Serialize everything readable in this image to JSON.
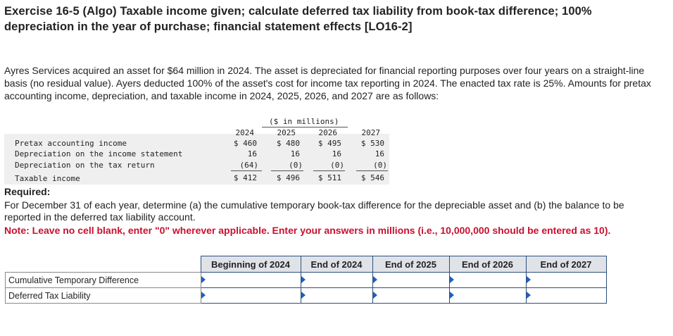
{
  "title": "Exercise 16-5 (Algo) Taxable income given; calculate deferred tax liability from book-tax difference; 100% depreciation in the year of purchase; financial statement effects [LO16-2]",
  "intro": "Ayres Services acquired an asset for $64 million in 2024. The asset is depreciated for financial reporting purposes over four years on a straight-line basis (no residual value). Ayers deducted 100% of the asset's cost for income tax reporting in 2024. The enacted tax rate is 25%. Amounts for pretax accounting income, depreciation, and taxable income in 2024, 2025, 2026, and 2027 are as follows:",
  "schedule": {
    "unit_header": "($ in millions)",
    "years": [
      "2024",
      "2025",
      "2026",
      "2027"
    ],
    "rows": [
      {
        "label": "Pretax accounting income",
        "values": [
          "$ 460",
          "$ 480",
          "$ 495",
          "$ 530"
        ]
      },
      {
        "label": "Depreciation on the income statement",
        "values": [
          "16",
          "16",
          "16",
          "16"
        ]
      },
      {
        "label": "Depreciation on the tax return",
        "values": [
          "(64)",
          "(0)",
          "(0)",
          "(0)"
        ]
      },
      {
        "label": "Taxable income",
        "values": [
          "$ 412",
          "$ 496",
          "$ 511",
          "$ 546"
        ]
      }
    ]
  },
  "required_heading": "Required:",
  "required_text": "For December 31 of each year, determine (a) the cumulative temporary book-tax difference for the depreciable asset and (b) the balance to be reported in the deferred tax liability account.",
  "note": "Note: Leave no cell blank, enter \"0\" wherever applicable. Enter your answers in millions (i.e., 10,000,000 should be entered as 10).",
  "answer_table": {
    "columns": [
      "Beginning of 2024",
      "End of 2024",
      "End of 2025",
      "End of 2026",
      "End of 2027"
    ],
    "rows": [
      {
        "label": "Cumulative Temporary Difference",
        "values": [
          "",
          "",
          "",
          "",
          ""
        ]
      },
      {
        "label": "Deferred Tax Liability",
        "values": [
          "",
          "",
          "",
          "",
          ""
        ]
      }
    ]
  }
}
